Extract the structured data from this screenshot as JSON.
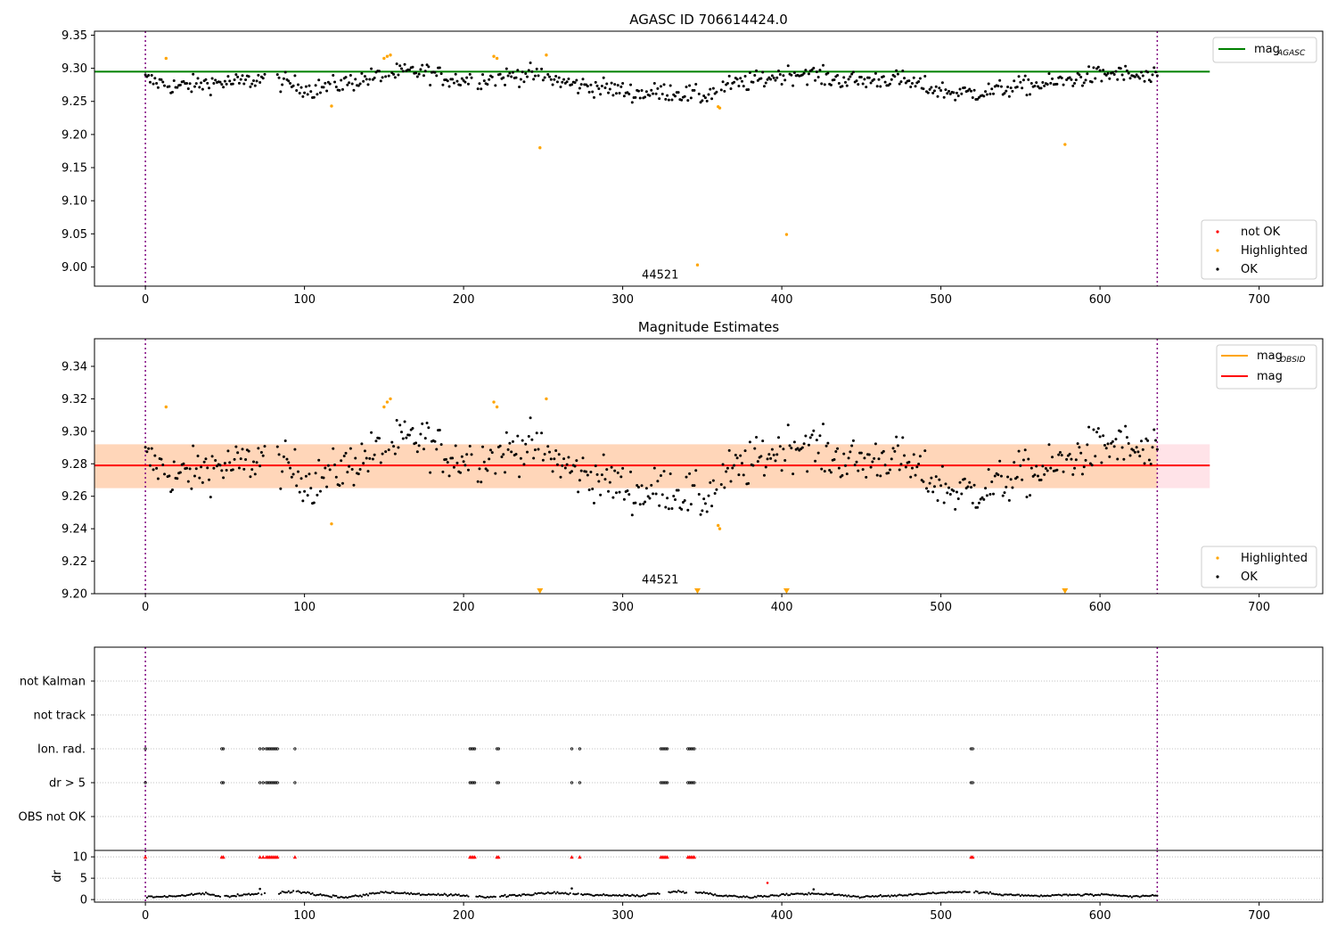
{
  "chart_data": [
    {
      "id": "p1",
      "type": "scatter",
      "title": "AGASC ID 706614424.0",
      "xlim": [
        -32,
        740
      ],
      "ylim": [
        8.971,
        9.356
      ],
      "xticks": [
        0,
        100,
        200,
        300,
        400,
        500,
        600,
        700
      ],
      "yticks": [
        9.0,
        9.05,
        9.1,
        9.15,
        9.2,
        9.25,
        9.3,
        9.35
      ],
      "ytick_labels": [
        "9.00",
        "9.05",
        "9.10",
        "9.15",
        "9.20",
        "9.25",
        "9.30",
        "9.35"
      ],
      "vlines": [
        0,
        636
      ],
      "hline": {
        "name": "mag_AGASC",
        "label_main": "mag",
        "label_sub": "AGASC",
        "y": 9.295,
        "x_range": [
          0,
          669
        ],
        "color": "#008000"
      },
      "annotation": {
        "text": "44521",
        "x": 318,
        "y": 8.98
      },
      "highlighted_points": [
        {
          "x": 13,
          "y": 9.315
        },
        {
          "x": 117,
          "y": 9.243
        },
        {
          "x": 150,
          "y": 9.315
        },
        {
          "x": 152,
          "y": 9.318
        },
        {
          "x": 154,
          "y": 9.32
        },
        {
          "x": 219,
          "y": 9.318
        },
        {
          "x": 221,
          "y": 9.315
        },
        {
          "x": 248,
          "y": 9.18
        },
        {
          "x": 252,
          "y": 9.32
        },
        {
          "x": 347,
          "y": 9.003
        },
        {
          "x": 360,
          "y": 9.242
        },
        {
          "x": 361,
          "y": 9.24
        },
        {
          "x": 403,
          "y": 9.049
        },
        {
          "x": 578,
          "y": 9.185
        }
      ],
      "ok_series": {
        "x_start": 0,
        "x_end": 636,
        "gaps": [
          [
            75,
            83
          ],
          [
            205,
            209
          ]
        ],
        "profile": [
          [
            0,
            9.283
          ],
          [
            20,
            9.272
          ],
          [
            40,
            9.278
          ],
          [
            60,
            9.279
          ],
          [
            75,
            9.285
          ],
          [
            90,
            9.277
          ],
          [
            105,
            9.268
          ],
          [
            120,
            9.275
          ],
          [
            140,
            9.285
          ],
          [
            160,
            9.293
          ],
          [
            175,
            9.295
          ],
          [
            190,
            9.285
          ],
          [
            200,
            9.283
          ],
          [
            220,
            9.285
          ],
          [
            240,
            9.292
          ],
          [
            255,
            9.284
          ],
          [
            270,
            9.275
          ],
          [
            290,
            9.27
          ],
          [
            310,
            9.262
          ],
          [
            330,
            9.265
          ],
          [
            350,
            9.257
          ],
          [
            365,
            9.273
          ],
          [
            385,
            9.282
          ],
          [
            400,
            9.29
          ],
          [
            415,
            9.293
          ],
          [
            430,
            9.284
          ],
          [
            450,
            9.281
          ],
          [
            470,
            9.285
          ],
          [
            490,
            9.272
          ],
          [
            510,
            9.262
          ],
          [
            530,
            9.265
          ],
          [
            550,
            9.273
          ],
          [
            570,
            9.277
          ],
          [
            590,
            9.287
          ],
          [
            610,
            9.292
          ],
          [
            636,
            9.283
          ]
        ],
        "noise": 0.014
      },
      "legend_top": {
        "position": "upper right",
        "entries": [
          {
            "label_main": "mag",
            "label_sub": "AGASC",
            "color": "#008000",
            "marker": "line"
          }
        ]
      },
      "legend_bottom": {
        "position": "lower right",
        "entries": [
          {
            "label": "not OK",
            "color": "#ff0000",
            "marker": "dot"
          },
          {
            "label": "Highlighted",
            "color": "#ffa500",
            "marker": "dot"
          },
          {
            "label": "OK",
            "color": "#000000",
            "marker": "dot"
          }
        ]
      }
    },
    {
      "id": "p2",
      "type": "scatter",
      "title": "Magnitude Estimates",
      "xlim": [
        -32,
        740
      ],
      "ylim": [
        9.2,
        9.357
      ],
      "xticks": [
        0,
        100,
        200,
        300,
        400,
        500,
        600,
        700
      ],
      "yticks": [
        9.2,
        9.22,
        9.24,
        9.26,
        9.28,
        9.3,
        9.32,
        9.34
      ],
      "ytick_labels": [
        "9.20",
        "9.22",
        "9.24",
        "9.26",
        "9.28",
        "9.30",
        "9.32",
        "9.34"
      ],
      "vlines": [
        0,
        636
      ],
      "mag_line": {
        "label": "mag",
        "y": 9.279,
        "x_range": [
          0,
          669
        ],
        "color": "#ff0000"
      },
      "mag_band": {
        "y_range": [
          9.265,
          9.292
        ],
        "x_range": [
          0,
          669
        ],
        "color": "#ffc0cb"
      },
      "mag_obsid_band": {
        "y_range": [
          9.265,
          9.292
        ],
        "x_range": [
          0,
          636
        ],
        "color": "#ffa500"
      },
      "annotation": {
        "text": "44521",
        "x": 318,
        "y": 9.204
      },
      "highlighted_points": [
        {
          "x": 13,
          "y": 9.315
        },
        {
          "x": 117,
          "y": 9.243
        },
        {
          "x": 150,
          "y": 9.315
        },
        {
          "x": 152,
          "y": 9.318
        },
        {
          "x": 154,
          "y": 9.32
        },
        {
          "x": 219,
          "y": 9.318
        },
        {
          "x": 221,
          "y": 9.315
        },
        {
          "x": 252,
          "y": 9.32
        },
        {
          "x": 360,
          "y": 9.242
        },
        {
          "x": 361,
          "y": 9.24
        }
      ],
      "below_range_markers": [
        {
          "x": 248
        },
        {
          "x": 347
        },
        {
          "x": 403
        },
        {
          "x": 578
        }
      ],
      "legend_top": {
        "position": "upper right",
        "entries": [
          {
            "label_main": "mag",
            "label_sub": "OBSID",
            "color": "#ffa500",
            "marker": "line"
          },
          {
            "label": "mag",
            "color": "#ff0000",
            "marker": "line"
          }
        ]
      },
      "legend_bottom": {
        "position": "lower right",
        "entries": [
          {
            "label": "Highlighted",
            "color": "#ffa500",
            "marker": "dot"
          },
          {
            "label": "OK",
            "color": "#000000",
            "marker": "dot"
          }
        ]
      }
    },
    {
      "id": "p3",
      "type": "scatter",
      "title": "",
      "xlim": [
        -32,
        740
      ],
      "categories": [
        "not Kalman",
        "not track",
        "Ion. rad.",
        "dr > 5",
        "OBS not OK"
      ],
      "flag_clusters": {
        "Ion. rad.": [
          0,
          48,
          49,
          72,
          74,
          76,
          77,
          78,
          79,
          80,
          81,
          82,
          83,
          94,
          204,
          205,
          206,
          207,
          221,
          222,
          268,
          273,
          324,
          325,
          326,
          327,
          328,
          341,
          342,
          343,
          344,
          345,
          519,
          520
        ],
        "dr > 5": [
          0,
          48,
          49,
          72,
          74,
          76,
          77,
          78,
          79,
          80,
          81,
          82,
          83,
          94,
          204,
          205,
          206,
          207,
          221,
          222,
          268,
          273,
          324,
          325,
          326,
          327,
          328,
          341,
          342,
          343,
          344,
          345,
          519,
          520
        ]
      },
      "vlines": [
        0,
        636
      ]
    },
    {
      "id": "p4",
      "type": "scatter",
      "title": "",
      "xlim": [
        -32,
        740
      ],
      "ylim": [
        -0.6,
        11.5
      ],
      "ylabel": "dr",
      "yticks": [
        0,
        5,
        10
      ],
      "ytick_labels": [
        "0",
        "5",
        "10"
      ],
      "vlines": [
        0,
        636
      ],
      "clipped_points_at": 10,
      "outlier_points": [
        {
          "x": 391,
          "y": 3.9
        },
        {
          "x": 72,
          "y": 2.5
        },
        {
          "x": 268,
          "y": 2.6
        },
        {
          "x": 420,
          "y": 2.4
        }
      ],
      "dr_profile": [
        [
          0,
          0.6
        ],
        [
          20,
          0.8
        ],
        [
          35,
          1.4
        ],
        [
          50,
          0.7
        ],
        [
          65,
          1.2
        ],
        [
          80,
          1.4
        ],
        [
          95,
          2.0
        ],
        [
          110,
          1.1
        ],
        [
          125,
          0.5
        ],
        [
          140,
          1.2
        ],
        [
          150,
          1.8
        ],
        [
          170,
          1.3
        ],
        [
          190,
          1.0
        ],
        [
          205,
          0.9
        ],
        [
          215,
          0.6
        ],
        [
          230,
          0.9
        ],
        [
          245,
          1.3
        ],
        [
          260,
          1.6
        ],
        [
          275,
          1.2
        ],
        [
          290,
          1.0
        ],
        [
          310,
          0.9
        ],
        [
          330,
          1.8
        ],
        [
          345,
          1.9
        ],
        [
          360,
          1.0
        ],
        [
          380,
          0.6
        ],
        [
          395,
          0.9
        ],
        [
          410,
          1.4
        ],
        [
          430,
          1.3
        ],
        [
          450,
          0.6
        ],
        [
          470,
          0.9
        ],
        [
          490,
          1.4
        ],
        [
          505,
          1.7
        ],
        [
          520,
          1.8
        ],
        [
          540,
          1.2
        ],
        [
          560,
          0.8
        ],
        [
          580,
          1.1
        ],
        [
          600,
          1.1
        ],
        [
          620,
          0.7
        ],
        [
          636,
          0.9
        ]
      ]
    }
  ]
}
